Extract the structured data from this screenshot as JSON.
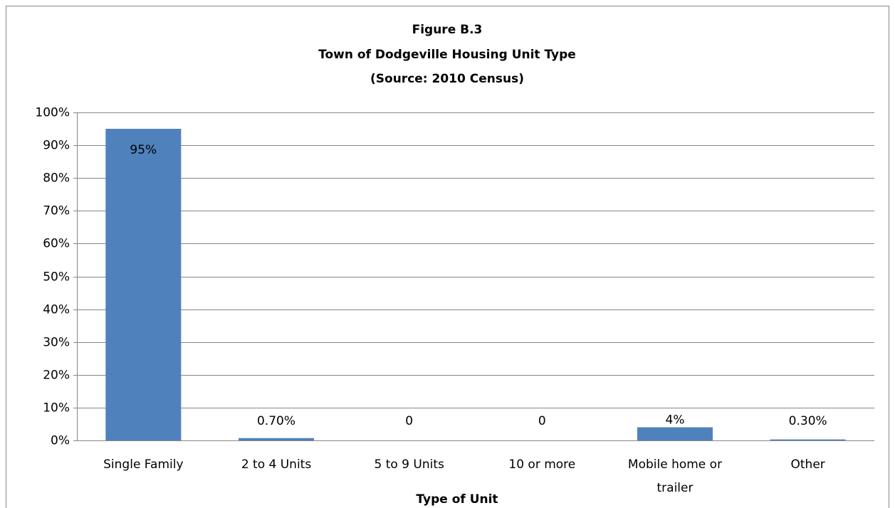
{
  "chart_data": {
    "type": "bar",
    "title": [
      "Figure B.3",
      "Town of Dodgeville Housing Unit Type",
      "(Source: 2010 Census)"
    ],
    "x_label": "Type of Unit",
    "categories": [
      "Single Family",
      "2 to 4 Units",
      "5 to 9 Units",
      "10 or more",
      "Mobile home or trailer",
      "Other"
    ],
    "values": [
      95,
      0.7,
      0,
      0,
      4,
      0.3
    ],
    "value_labels": [
      "95%",
      "0.70%",
      "0",
      "0",
      "4%",
      "0.30%"
    ],
    "color": "#4f81bd",
    "ylim": [
      0,
      100
    ],
    "yticks": [
      {
        "value": 0,
        "label": "0%"
      },
      {
        "value": 10,
        "label": "10%"
      },
      {
        "value": 20,
        "label": "20%"
      },
      {
        "value": 30,
        "label": "30%"
      },
      {
        "value": 40,
        "label": "40%"
      },
      {
        "value": 50,
        "label": "50%"
      },
      {
        "value": 60,
        "label": "60%"
      },
      {
        "value": 70,
        "label": "70%"
      },
      {
        "value": 80,
        "label": "80%"
      },
      {
        "value": 90,
        "label": "90%"
      },
      {
        "value": 100,
        "label": "100%"
      }
    ],
    "grid": true
  }
}
